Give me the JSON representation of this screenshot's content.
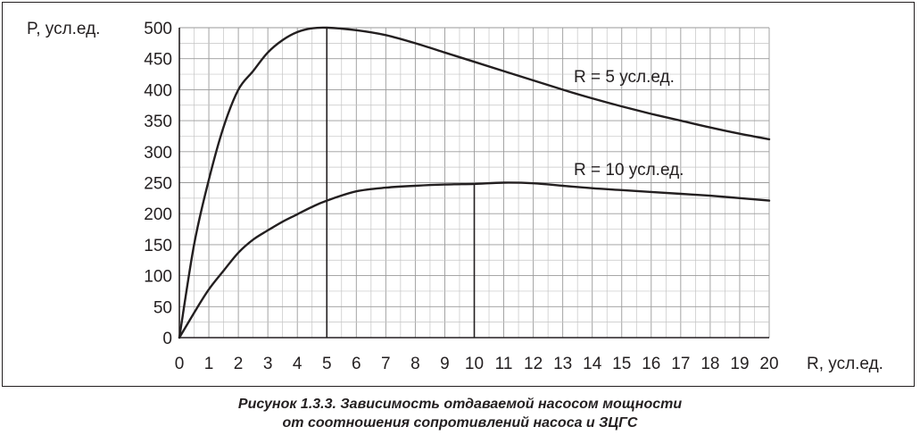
{
  "figure": {
    "caption_line1": "Рисунок 1.3.3. Зависимость отдаваемой насосом мощности",
    "caption_line2": "от соотношения сопротивлений насоса и ЗЦГС"
  },
  "chart_data": {
    "type": "line",
    "title": "",
    "xlabel": "R, усл.ед.",
    "ylabel": "P, усл.ед.",
    "xlim": [
      0,
      20
    ],
    "ylim": [
      0,
      500
    ],
    "x_ticks": [
      0,
      1,
      2,
      3,
      4,
      5,
      6,
      7,
      8,
      9,
      10,
      11,
      12,
      13,
      14,
      15,
      16,
      17,
      18,
      19,
      20
    ],
    "y_ticks": [
      0,
      50,
      100,
      150,
      200,
      250,
      300,
      350,
      400,
      450,
      500
    ],
    "grid": true,
    "legend": "none",
    "series": [
      {
        "name": "R = 5 усл.ед.",
        "x": [
          0,
          0.5,
          1,
          1.5,
          2,
          2.5,
          3,
          3.5,
          4,
          4.5,
          5,
          6,
          7,
          8,
          9,
          10,
          11,
          12,
          13,
          14,
          15,
          16,
          17,
          18,
          19,
          20
        ],
        "values": [
          0,
          150,
          255,
          340,
          400,
          430,
          460,
          480,
          493,
          499,
          500,
          496,
          488,
          475,
          460,
          445,
          430,
          415,
          400,
          386,
          373,
          361,
          350,
          339,
          329,
          320
        ]
      },
      {
        "name": "R = 10 усл.ед.",
        "x": [
          0,
          0.5,
          1,
          1.5,
          2,
          2.5,
          3,
          3.5,
          4,
          4.5,
          5,
          6,
          7,
          8,
          9,
          10,
          11,
          12,
          13,
          14,
          15,
          16,
          17,
          18,
          19,
          20
        ],
        "values": [
          0,
          40,
          78,
          108,
          137,
          158,
          173,
          187,
          199,
          211,
          221,
          236,
          242,
          245,
          247,
          248,
          250,
          249,
          245,
          241,
          238,
          235,
          232,
          229,
          225,
          221
        ]
      }
    ],
    "markers": [
      {
        "x": 5,
        "y": 500
      },
      {
        "x": 10,
        "y": 248
      }
    ],
    "annotations": [
      "R = 5 усл.ед.",
      "R = 10 усл.ед."
    ]
  }
}
